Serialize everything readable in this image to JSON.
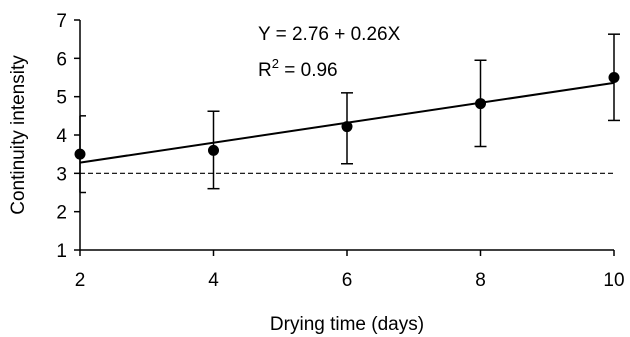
{
  "chart_data": {
    "type": "scatter",
    "title": "",
    "xlabel": "Drying time (days)",
    "ylabel": "Continuity intensity",
    "xlim": [
      2,
      10
    ],
    "ylim": [
      1,
      7
    ],
    "xticks": [
      "2",
      "4",
      "6",
      "8",
      "10"
    ],
    "yticks": [
      "1",
      "2",
      "3",
      "4",
      "5",
      "6",
      "7"
    ],
    "points": [
      {
        "x": 2,
        "y": 3.5,
        "err_low": 2.5,
        "err_high": 4.5
      },
      {
        "x": 4,
        "y": 3.6,
        "err_low": 2.6,
        "err_high": 4.62
      },
      {
        "x": 6,
        "y": 4.22,
        "err_low": 3.25,
        "err_high": 5.1
      },
      {
        "x": 8,
        "y": 4.82,
        "err_low": 3.7,
        "err_high": 5.95
      },
      {
        "x": 10,
        "y": 5.5,
        "err_low": 4.38,
        "err_high": 6.63
      }
    ],
    "regression": {
      "intercept": 2.76,
      "slope": 0.26
    },
    "reference_line": {
      "y": 3,
      "style": "dashed"
    },
    "annotations": {
      "equation": "Y = 2.76 + 0.26X",
      "r2_prefix": "R",
      "r2_sup": "2",
      "r2_suffix": " = 0.96"
    },
    "grid": false,
    "legend": false
  }
}
